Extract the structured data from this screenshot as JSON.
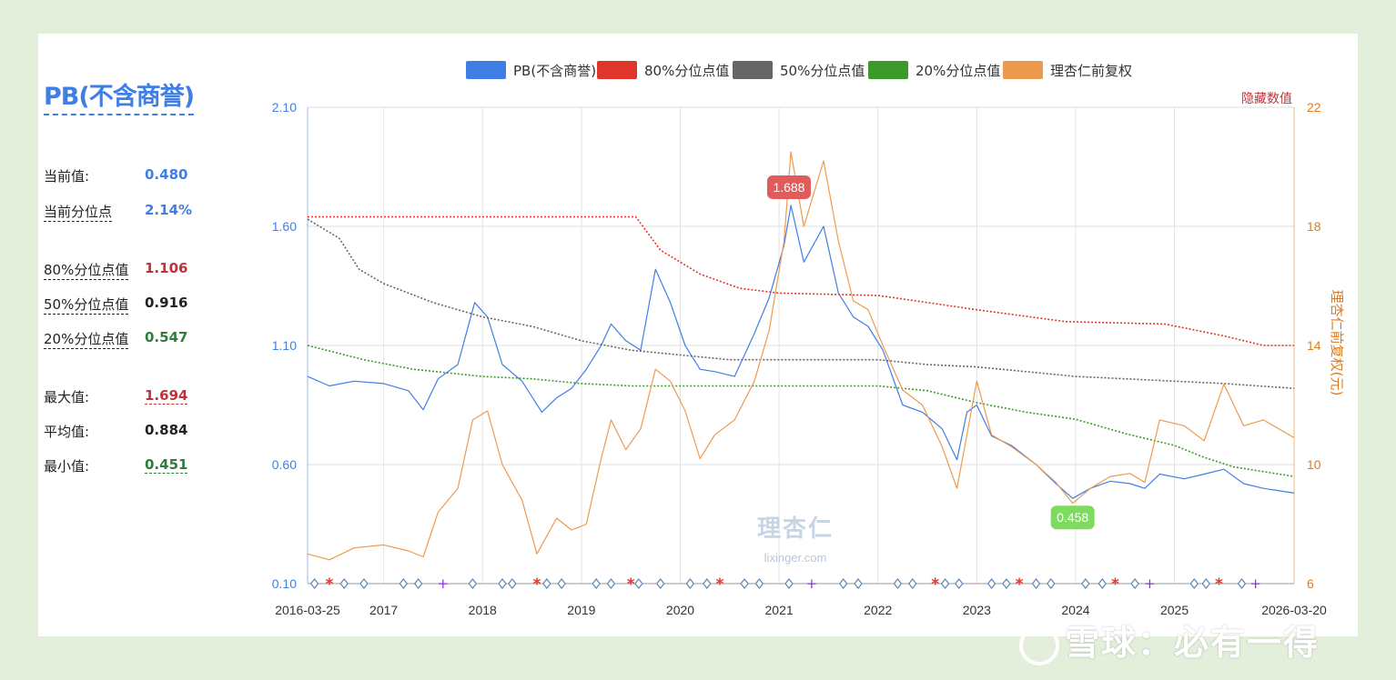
{
  "sidebar": {
    "title": "PB(不含商誉)",
    "current_label": "当前值:",
    "current_value": "0.480",
    "current_pct_label": "当前分位点",
    "current_pct_value": "2.14%",
    "p80_label": "80%分位点值",
    "p80_value": "1.106",
    "p50_label": "50%分位点值",
    "p50_value": "0.916",
    "p20_label": "20%分位点值",
    "p20_value": "0.547",
    "max_label": "最大值:",
    "max_value": "1.694",
    "avg_label": "平均值:",
    "avg_value": "0.884",
    "min_label": "最小值:",
    "min_value": "0.451"
  },
  "hide_values_label": "隐藏数值",
  "watermark": {
    "logo_text": "理杏仁",
    "logo_url": "lixinger.com",
    "bottom_text": "雪球：必有一得"
  },
  "colors": {
    "pb": "#3f7fe5",
    "p80": "#e0352b",
    "p50": "#666666",
    "p20": "#3b9a2a",
    "price": "#ee9a4e",
    "right_axis_text": "#e07a1f",
    "hide_label": "#c0333b",
    "left_axis_text": "#3f7fe5"
  },
  "chart_data": {
    "type": "line",
    "legend": [
      "PB(不含商誉)",
      "80%分位点值",
      "50%分位点值",
      "20%分位点值",
      "理杏仁前复权"
    ],
    "legend_position": "top-center",
    "x_range": [
      "2016-03-25",
      "2026-03-20"
    ],
    "x_tick_labels": [
      "2016-03-25",
      "2017",
      "2018",
      "2019",
      "2020",
      "2021",
      "2022",
      "2023",
      "2024",
      "2025",
      "2026-03-20"
    ],
    "y_left": {
      "range": [
        0.1,
        2.1
      ],
      "ticks": [
        "0.10",
        "0.60",
        "1.10",
        "1.60",
        "2.10"
      ]
    },
    "y_right": {
      "label": "理杏仁前复权(元)",
      "range": [
        6,
        22
      ],
      "ticks": [
        "6",
        "10",
        "14",
        "18",
        "22"
      ]
    },
    "grid": true,
    "annotations": [
      {
        "text": "1.688",
        "date": "2021.1",
        "value": 1.688,
        "kind": "max"
      },
      {
        "text": "0.458",
        "date": "2023.97",
        "value": 0.458,
        "kind": "min"
      }
    ],
    "series": [
      {
        "name": "PB(不含商誉)",
        "axis": "left",
        "style": "solid",
        "points": [
          [
            2016.23,
            0.97
          ],
          [
            2016.45,
            0.93
          ],
          [
            2016.7,
            0.95
          ],
          [
            2017.0,
            0.94
          ],
          [
            2017.25,
            0.91
          ],
          [
            2017.4,
            0.83
          ],
          [
            2017.55,
            0.96
          ],
          [
            2017.75,
            1.02
          ],
          [
            2017.92,
            1.28
          ],
          [
            2018.05,
            1.22
          ],
          [
            2018.2,
            1.02
          ],
          [
            2018.4,
            0.95
          ],
          [
            2018.6,
            0.82
          ],
          [
            2018.75,
            0.88
          ],
          [
            2018.9,
            0.92
          ],
          [
            2019.05,
            1.0
          ],
          [
            2019.2,
            1.1
          ],
          [
            2019.3,
            1.19
          ],
          [
            2019.45,
            1.12
          ],
          [
            2019.6,
            1.08
          ],
          [
            2019.75,
            1.42
          ],
          [
            2019.9,
            1.28
          ],
          [
            2020.05,
            1.1
          ],
          [
            2020.2,
            1.0
          ],
          [
            2020.35,
            0.99
          ],
          [
            2020.55,
            0.97
          ],
          [
            2020.75,
            1.15
          ],
          [
            2020.9,
            1.3
          ],
          [
            2021.05,
            1.52
          ],
          [
            2021.12,
            1.688
          ],
          [
            2021.25,
            1.45
          ],
          [
            2021.45,
            1.6
          ],
          [
            2021.6,
            1.32
          ],
          [
            2021.75,
            1.22
          ],
          [
            2021.9,
            1.18
          ],
          [
            2022.05,
            1.08
          ],
          [
            2022.25,
            0.85
          ],
          [
            2022.45,
            0.82
          ],
          [
            2022.65,
            0.75
          ],
          [
            2022.8,
            0.62
          ],
          [
            2022.9,
            0.82
          ],
          [
            2023.0,
            0.85
          ],
          [
            2023.15,
            0.72
          ],
          [
            2023.35,
            0.68
          ],
          [
            2023.6,
            0.6
          ],
          [
            2023.8,
            0.52
          ],
          [
            2023.97,
            0.458
          ],
          [
            2024.15,
            0.5
          ],
          [
            2024.35,
            0.53
          ],
          [
            2024.55,
            0.52
          ],
          [
            2024.7,
            0.5
          ],
          [
            2024.85,
            0.56
          ],
          [
            2025.1,
            0.54
          ],
          [
            2025.3,
            0.56
          ],
          [
            2025.5,
            0.58
          ],
          [
            2025.7,
            0.52
          ],
          [
            2025.9,
            0.5
          ],
          [
            2026.21,
            0.48
          ]
        ]
      },
      {
        "name": "80%分位点值",
        "axis": "left",
        "style": "dotted",
        "points": [
          [
            2016.23,
            1.64
          ],
          [
            2019.55,
            1.64
          ],
          [
            2019.8,
            1.5
          ],
          [
            2020.2,
            1.4
          ],
          [
            2020.6,
            1.34
          ],
          [
            2021.0,
            1.32
          ],
          [
            2022.0,
            1.31
          ],
          [
            2022.5,
            1.28
          ],
          [
            2023.0,
            1.25
          ],
          [
            2023.9,
            1.2
          ],
          [
            2024.9,
            1.19
          ],
          [
            2025.5,
            1.14
          ],
          [
            2025.9,
            1.1
          ],
          [
            2026.21,
            1.1
          ]
        ]
      },
      {
        "name": "50%分位点值",
        "axis": "left",
        "style": "dotted",
        "points": [
          [
            2016.23,
            1.63
          ],
          [
            2016.55,
            1.55
          ],
          [
            2016.75,
            1.42
          ],
          [
            2017.0,
            1.36
          ],
          [
            2017.5,
            1.28
          ],
          [
            2018.0,
            1.22
          ],
          [
            2018.5,
            1.18
          ],
          [
            2019.0,
            1.12
          ],
          [
            2019.5,
            1.08
          ],
          [
            2020.0,
            1.06
          ],
          [
            2020.5,
            1.04
          ],
          [
            2021.0,
            1.04
          ],
          [
            2022.0,
            1.04
          ],
          [
            2022.5,
            1.02
          ],
          [
            2023.0,
            1.01
          ],
          [
            2023.5,
            0.99
          ],
          [
            2024.0,
            0.97
          ],
          [
            2024.5,
            0.96
          ],
          [
            2025.0,
            0.95
          ],
          [
            2025.5,
            0.94
          ],
          [
            2026.21,
            0.92
          ]
        ]
      },
      {
        "name": "20%分位点值",
        "axis": "left",
        "style": "dotted",
        "points": [
          [
            2016.23,
            1.1
          ],
          [
            2016.8,
            1.04
          ],
          [
            2017.3,
            1.0
          ],
          [
            2018.0,
            0.97
          ],
          [
            2018.5,
            0.96
          ],
          [
            2019.0,
            0.94
          ],
          [
            2019.5,
            0.93
          ],
          [
            2020.0,
            0.93
          ],
          [
            2021.0,
            0.93
          ],
          [
            2022.0,
            0.93
          ],
          [
            2022.5,
            0.91
          ],
          [
            2023.0,
            0.86
          ],
          [
            2023.5,
            0.82
          ],
          [
            2024.0,
            0.79
          ],
          [
            2024.5,
            0.73
          ],
          [
            2025.0,
            0.68
          ],
          [
            2025.3,
            0.63
          ],
          [
            2025.6,
            0.59
          ],
          [
            2026.21,
            0.55
          ]
        ]
      },
      {
        "name": "理杏仁前复权",
        "axis": "right",
        "style": "solid",
        "points": [
          [
            2016.23,
            7.0
          ],
          [
            2016.45,
            6.8
          ],
          [
            2016.7,
            7.2
          ],
          [
            2017.0,
            7.3
          ],
          [
            2017.25,
            7.1
          ],
          [
            2017.4,
            6.9
          ],
          [
            2017.55,
            8.4
          ],
          [
            2017.75,
            9.2
          ],
          [
            2017.9,
            11.5
          ],
          [
            2018.05,
            11.8
          ],
          [
            2018.2,
            10.0
          ],
          [
            2018.4,
            8.8
          ],
          [
            2018.55,
            7.0
          ],
          [
            2018.75,
            8.2
          ],
          [
            2018.9,
            7.8
          ],
          [
            2019.05,
            8.0
          ],
          [
            2019.2,
            10.2
          ],
          [
            2019.3,
            11.5
          ],
          [
            2019.45,
            10.5
          ],
          [
            2019.6,
            11.2
          ],
          [
            2019.75,
            13.2
          ],
          [
            2019.9,
            12.8
          ],
          [
            2020.05,
            11.8
          ],
          [
            2020.2,
            10.2
          ],
          [
            2020.35,
            11.0
          ],
          [
            2020.55,
            11.5
          ],
          [
            2020.75,
            12.8
          ],
          [
            2020.9,
            14.5
          ],
          [
            2021.05,
            17.5
          ],
          [
            2021.12,
            20.5
          ],
          [
            2021.25,
            18.0
          ],
          [
            2021.45,
            20.2
          ],
          [
            2021.6,
            17.5
          ],
          [
            2021.75,
            15.5
          ],
          [
            2021.9,
            15.2
          ],
          [
            2022.05,
            14.0
          ],
          [
            2022.25,
            12.5
          ],
          [
            2022.45,
            12.0
          ],
          [
            2022.65,
            10.6
          ],
          [
            2022.8,
            9.2
          ],
          [
            2022.9,
            11.0
          ],
          [
            2023.0,
            12.8
          ],
          [
            2023.15,
            11.0
          ],
          [
            2023.35,
            10.6
          ],
          [
            2023.6,
            10.0
          ],
          [
            2023.8,
            9.4
          ],
          [
            2023.97,
            8.7
          ],
          [
            2024.15,
            9.2
          ],
          [
            2024.35,
            9.6
          ],
          [
            2024.55,
            9.7
          ],
          [
            2024.7,
            9.4
          ],
          [
            2024.85,
            11.5
          ],
          [
            2025.1,
            11.3
          ],
          [
            2025.3,
            10.8
          ],
          [
            2025.5,
            12.7
          ],
          [
            2025.7,
            11.3
          ],
          [
            2025.9,
            11.5
          ],
          [
            2026.21,
            10.9
          ]
        ]
      }
    ],
    "event_markers": {
      "diamond": [
        2016.3,
        2016.6,
        2016.8,
        2017.2,
        2017.35,
        2017.9,
        2018.2,
        2018.3,
        2018.65,
        2018.8,
        2019.15,
        2019.3,
        2019.58,
        2019.8,
        2020.1,
        2020.27,
        2020.65,
        2020.8,
        2021.1,
        2021.65,
        2021.8,
        2022.2,
        2022.35,
        2022.68,
        2022.82,
        2023.15,
        2023.3,
        2023.6,
        2023.75,
        2024.1,
        2024.27,
        2024.6,
        2025.2,
        2025.32,
        2025.68
      ],
      "star": [
        2016.45,
        2018.55,
        2019.5,
        2020.4,
        2022.58,
        2023.43,
        2024.4,
        2025.45
      ],
      "plus": [
        2017.6,
        2021.33,
        2024.75,
        2025.82
      ]
    }
  }
}
